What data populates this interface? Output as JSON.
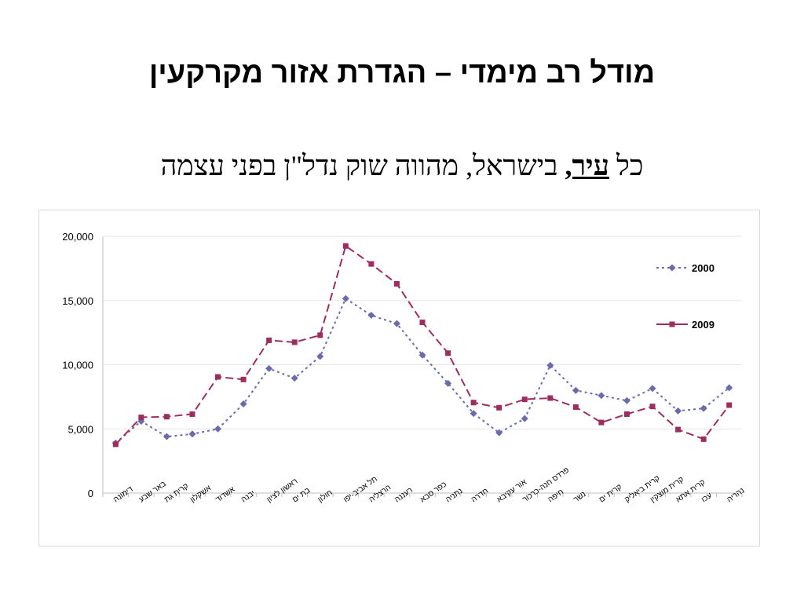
{
  "slide": {
    "title": "מודל רב מימדי – הגדרת אזור מקרקעין",
    "subtitle_pre": "כל ",
    "subtitle_emph": "עיר,",
    "subtitle_post": " בישראל, מהווה שוק נדל\"ן בפני עצמה"
  },
  "colors": {
    "series_2000": "#6b6bab",
    "series_2009": "#9b2d5f",
    "grid": "#e6e6e6",
    "axis": "#bfbfbf"
  },
  "chart_data": {
    "type": "line",
    "title": "",
    "xlabel": "",
    "ylabel": "",
    "ylim": [
      0,
      20000
    ],
    "yticks": [
      0,
      5000,
      10000,
      15000,
      20000
    ],
    "ytick_labels": [
      "0",
      "5,000",
      "10,000",
      "15,000",
      "20,000"
    ],
    "grid": true,
    "legend_position": "right",
    "categories": [
      "דימונה",
      "באר שבע",
      "קרית גת",
      "אשקלון",
      "אשדוד",
      "יבנה",
      "ראשון לציון",
      "בת ים",
      "חולון",
      "תל אביב-יפו",
      "הרצליה",
      "רעננה",
      "כפר סבא",
      "נתניה",
      "חדרה",
      "אור עקיבא",
      "פרדס חנה-כרכור",
      "חיפה",
      "נשר",
      "קרית ים",
      "קרית ביאליק",
      "קרית מוצקין",
      "קרית אתא",
      "עכו",
      "נהריה"
    ],
    "series": [
      {
        "name": "2000",
        "values": [
          3900,
          5600,
          4400,
          4600,
          5000,
          6950,
          9700,
          8950,
          10650,
          15150,
          13850,
          13200,
          10750,
          8550,
          6200,
          4700,
          5800,
          9950,
          8000,
          7600,
          7200,
          8150,
          6400,
          6600,
          8200
        ]
      },
      {
        "name": "2009",
        "values": [
          3800,
          5900,
          5950,
          6150,
          9050,
          8850,
          11900,
          11750,
          12300,
          19250,
          17850,
          16300,
          13300,
          10900,
          7050,
          6650,
          7300,
          7400,
          6700,
          5500,
          6150,
          6750,
          4950,
          4200,
          6850
        ]
      }
    ]
  }
}
